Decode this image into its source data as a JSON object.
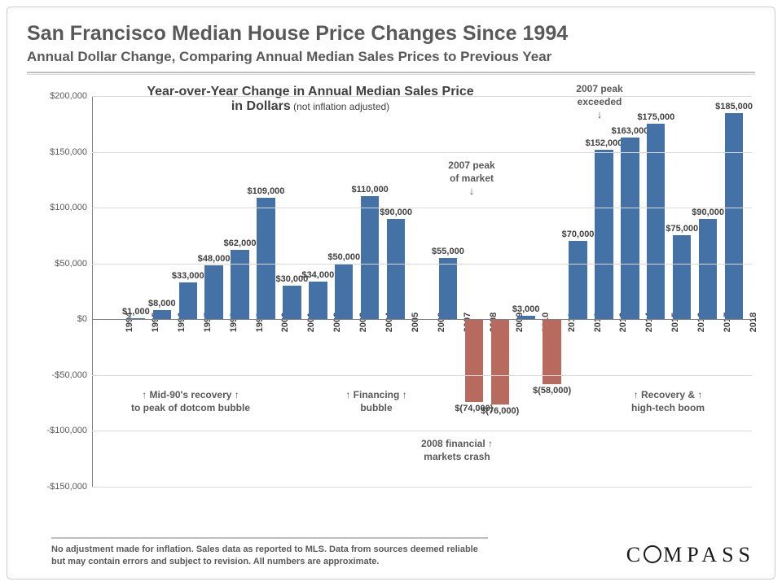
{
  "title": "San Francisco Median House Price Changes Since 1994",
  "subtitle": "Annual Dollar Change, Comparing Annual Median Sales Prices to Previous Year",
  "chart_title_l1": "Year-over-Year Change in Annual Median Sales Price",
  "chart_title_l2": "in Dollars",
  "chart_title_small": " (not inflation adjusted)",
  "chart": {
    "type": "bar",
    "ylim": [
      -150000,
      200000
    ],
    "ytick_step": 50000,
    "yticks": [
      {
        "v": -150000,
        "label": "-$150,000"
      },
      {
        "v": -100000,
        "label": "-$100,000"
      },
      {
        "v": -50000,
        "label": "-$50,000"
      },
      {
        "v": 0,
        "label": "$0"
      },
      {
        "v": 50000,
        "label": "$50,000"
      },
      {
        "v": 100000,
        "label": "$100,000"
      },
      {
        "v": 150000,
        "label": "$150,000"
      },
      {
        "v": 200000,
        "label": "$200,000"
      }
    ],
    "positive_color": "#4472a6",
    "negative_color": "#b86a5f",
    "grid_color": "#d9d9d9",
    "axis_color": "#808080",
    "background_color": "#ffffff",
    "title_fontsize": 16,
    "label_fontsize": 11,
    "bar_width": 0.7,
    "bars": [
      {
        "year": "1994",
        "value": null,
        "label": ""
      },
      {
        "year": "1995",
        "value": 1000,
        "label": "$1,000"
      },
      {
        "year": "1996",
        "value": 8000,
        "label": "$8,000"
      },
      {
        "year": "1997",
        "value": 33000,
        "label": "$33,000"
      },
      {
        "year": "1998",
        "value": 48000,
        "label": "$48,000"
      },
      {
        "year": "1999",
        "value": 62000,
        "label": "$62,000"
      },
      {
        "year": "2000",
        "value": 109000,
        "label": "$109,000"
      },
      {
        "year": "2001",
        "value": 30000,
        "label": "$30,000"
      },
      {
        "year": "2002",
        "value": 34000,
        "label": "$34,000"
      },
      {
        "year": "2003",
        "value": 50000,
        "label": "$50,000"
      },
      {
        "year": "2004",
        "value": 110000,
        "label": "$110,000"
      },
      {
        "year": "2005",
        "value": 90000,
        "label": "$90,000"
      },
      {
        "year": "2006",
        "value": null,
        "label": ""
      },
      {
        "year": "2007",
        "value": 55000,
        "label": "$55,000"
      },
      {
        "year": "2008",
        "value": -74000,
        "label": "$(74,000)"
      },
      {
        "year": "2009",
        "value": -76000,
        "label": "$(76,000)"
      },
      {
        "year": "2010",
        "value": 3000,
        "label": "$3,000"
      },
      {
        "year": "2011",
        "value": -58000,
        "label": "$(58,000)"
      },
      {
        "year": "2012",
        "value": 70000,
        "label": "$70,000"
      },
      {
        "year": "2013",
        "value": 152000,
        "label": "$152,000"
      },
      {
        "year": "2014",
        "value": 163000,
        "label": "$163,000"
      },
      {
        "year": "2015",
        "value": 175000,
        "label": "$175,000"
      },
      {
        "year": "2016",
        "value": 75000,
        "label": "$75,000"
      },
      {
        "year": "2017",
        "value": 90000,
        "label": "$90,000"
      },
      {
        "year": "2018",
        "value": 185000,
        "label": "$185,000"
      }
    ]
  },
  "annotations": {
    "peak_exceeded_l1": "2007 peak",
    "peak_exceeded_l2": "exceeded",
    "peak_market_l1": "2007 peak",
    "peak_market_l2": "of market",
    "mid90s_l1": "↑  Mid-90's recovery  ↑",
    "mid90s_l2": "to peak of dotcom bubble",
    "financing_l1": "↑  Financing  ↑",
    "financing_l2": "bubble",
    "crash_l1": "2008 financial  ↑",
    "crash_l2": "markets crash",
    "recovery_l1": "↑    Recovery &    ↑",
    "recovery_l2": "high-tech boom"
  },
  "disclaimer": "No adjustment made for inflation. Sales data as reported to MLS. Data from sources deemed reliable but may contain errors and subject to revision. All numbers are approximate.",
  "logo_text": "COMPASS"
}
